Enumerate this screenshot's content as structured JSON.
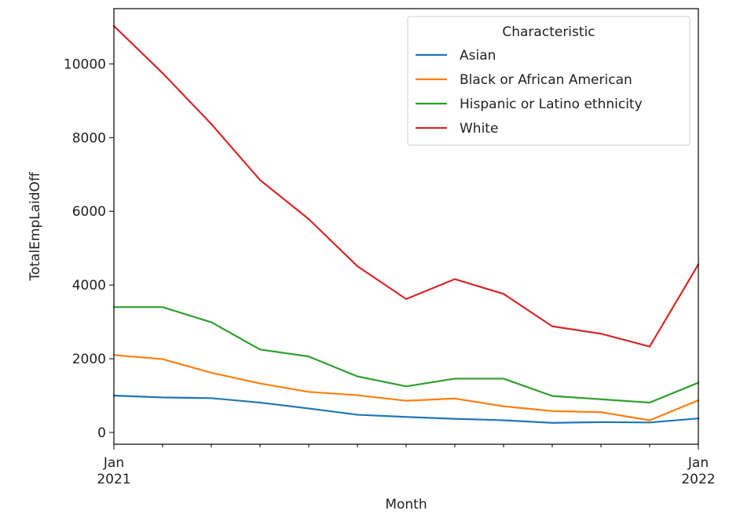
{
  "chart_data": {
    "type": "line",
    "title": "",
    "xlabel": "Month",
    "ylabel": "TotalEmpLaidOff",
    "x_tick_labels": [
      {
        "month_index": 0,
        "lines": [
          "Jan",
          "2021"
        ]
      },
      {
        "month_index": 12,
        "lines": [
          "Jan",
          "2022"
        ]
      }
    ],
    "y_ticks": [
      0,
      2000,
      4000,
      6000,
      8000,
      10000
    ],
    "ylim": [
      -320,
      11500
    ],
    "xlim": [
      0,
      12
    ],
    "categories": [
      "Jan 2021",
      "Feb 2021",
      "Mar 2021",
      "Apr 2021",
      "May 2021",
      "Jun 2021",
      "Jul 2021",
      "Aug 2021",
      "Sep 2021",
      "Oct 2021",
      "Nov 2021",
      "Dec 2021",
      "Jan 2022"
    ],
    "legend": {
      "title": "Characteristic",
      "position": "upper-right"
    },
    "series": [
      {
        "name": "Asian",
        "color": "#1f77b4",
        "values": [
          1000,
          950,
          930,
          810,
          650,
          480,
          420,
          370,
          330,
          260,
          280,
          270,
          380
        ]
      },
      {
        "name": "Black or African American",
        "color": "#ff7f0e",
        "values": [
          2100,
          1990,
          1620,
          1330,
          1100,
          1010,
          860,
          920,
          710,
          580,
          550,
          330,
          870
        ]
      },
      {
        "name": "Hispanic or Latino ethnicity",
        "color": "#2ca02c",
        "values": [
          3400,
          3400,
          2990,
          2250,
          2060,
          1520,
          1250,
          1460,
          1460,
          990,
          900,
          810,
          1350
        ]
      },
      {
        "name": "White",
        "color": "#d62728",
        "values": [
          11030,
          9750,
          8370,
          6850,
          5790,
          4510,
          3620,
          4160,
          3760,
          2880,
          2680,
          2330,
          4560
        ]
      }
    ]
  }
}
